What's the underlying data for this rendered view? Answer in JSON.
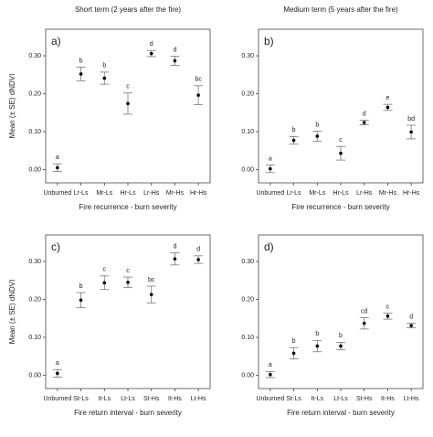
{
  "chart_data": [
    {
      "type": "errorbar",
      "title": "Short term (2 years after the fire)",
      "panel_label": "a)",
      "ylabel": "Mean (± SE) dNDVI",
      "xlabel": "Fire recurrence - burn severity",
      "categories": [
        "Unburned",
        "Lr-Ls",
        "Mr-Ls",
        "Hr-Ls",
        "Lr-Hs",
        "Mr-Hs",
        "Hr-Hs"
      ],
      "values": [
        0.005,
        0.252,
        0.241,
        0.174,
        0.306,
        0.287,
        0.196
      ],
      "errors": [
        0.01,
        0.018,
        0.016,
        0.028,
        0.008,
        0.012,
        0.025
      ],
      "annotations": [
        "a",
        "b",
        "b",
        "c",
        "d",
        "d",
        "bc"
      ],
      "ylim": [
        -0.035,
        0.37
      ],
      "yticks": [
        {
          "value": 0,
          "label": "0.00"
        },
        {
          "value": 0.1,
          "label": "0.10"
        },
        {
          "value": 0.2,
          "label": "0.20"
        },
        {
          "value": 0.3,
          "label": "0.30"
        }
      ]
    },
    {
      "type": "errorbar",
      "title": "Medium term (5 years after the fire)",
      "panel_label": "b)",
      "xlabel": "Fire recurrence - burn severity",
      "categories": [
        "Unburned",
        "Lr-Ls",
        "Mr-Ls",
        "Hr-Ls",
        "Lr-Hs",
        "Mr-Hs",
        "Hr-Hs"
      ],
      "values": [
        0.002,
        0.077,
        0.088,
        0.043,
        0.124,
        0.164,
        0.099
      ],
      "errors": [
        0.01,
        0.01,
        0.013,
        0.018,
        0.006,
        0.008,
        0.018
      ],
      "annotations": [
        "a",
        "b",
        "b",
        "c",
        "d",
        "e",
        "bd"
      ],
      "ylim": [
        -0.035,
        0.37
      ],
      "yticks": [
        {
          "value": 0,
          "label": "0.00"
        },
        {
          "value": 0.1,
          "label": "0.10"
        },
        {
          "value": 0.2,
          "label": "0.20"
        },
        {
          "value": 0.3,
          "label": "0.30"
        }
      ]
    },
    {
      "type": "errorbar",
      "panel_label": "c)",
      "ylabel": "Mean (± SE) dNDVI",
      "xlabel": "Fire return interval - burn severity",
      "categories": [
        "Unburned",
        "St-Ls",
        "It-Ls",
        "Lt-Ls",
        "St-Hs",
        "It-Hs",
        "Lt-Hs"
      ],
      "values": [
        0.005,
        0.198,
        0.244,
        0.245,
        0.213,
        0.307,
        0.305
      ],
      "errors": [
        0.01,
        0.02,
        0.018,
        0.014,
        0.022,
        0.016,
        0.01
      ],
      "annotations": [
        "a",
        "b",
        "c",
        "c",
        "bc",
        "d",
        "d"
      ],
      "ylim": [
        -0.035,
        0.37
      ],
      "yticks": [
        {
          "value": 0,
          "label": "0.00"
        },
        {
          "value": 0.1,
          "label": "0.10"
        },
        {
          "value": 0.2,
          "label": "0.20"
        },
        {
          "value": 0.3,
          "label": "0.30"
        }
      ]
    },
    {
      "type": "errorbar",
      "panel_label": "d)",
      "xlabel": "Fire return interval - burn severity",
      "categories": [
        "Unburned",
        "St-Ls",
        "It-Ls",
        "Lt-Ls",
        "St-Hs",
        "It-Hs",
        "Lt-Hs"
      ],
      "values": [
        0.002,
        0.058,
        0.077,
        0.077,
        0.137,
        0.156,
        0.131
      ],
      "errors": [
        0.008,
        0.015,
        0.015,
        0.01,
        0.015,
        0.008,
        0.006
      ],
      "annotations": [
        "a",
        "b",
        "b",
        "b",
        "cd",
        "c",
        "d"
      ],
      "ylim": [
        -0.035,
        0.37
      ],
      "yticks": [
        {
          "value": 0,
          "label": "0.00"
        },
        {
          "value": 0.1,
          "label": "0.10"
        },
        {
          "value": 0.2,
          "label": "0.20"
        },
        {
          "value": 0.3,
          "label": "0.30"
        }
      ]
    }
  ]
}
